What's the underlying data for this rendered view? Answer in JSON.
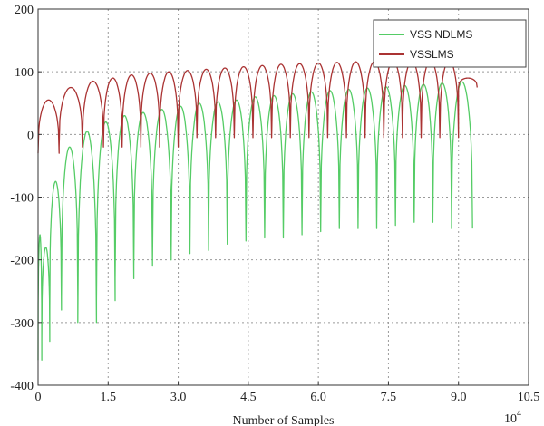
{
  "chart_data": {
    "type": "line",
    "title": "",
    "xlabel": "Number of Samples",
    "ylabel": "",
    "x_exponent_label": "10",
    "x_exponent_power": "4",
    "xlim": [
      0,
      10.5
    ],
    "ylim": [
      -400,
      200
    ],
    "x_ticks": [
      0,
      1.5,
      3.0,
      4.5,
      6.0,
      7.5,
      9.0,
      10.5
    ],
    "x_tick_labels": [
      "0",
      "1.5",
      "3.0",
      "4.5",
      "6.0",
      "7.5",
      "9.0",
      "10.5"
    ],
    "y_ticks": [
      -400,
      -300,
      -200,
      -100,
      0,
      100,
      200
    ],
    "y_tick_labels": [
      "-400",
      "-300",
      "-200",
      "-100",
      "0",
      "100",
      "200"
    ],
    "grid": true,
    "legend_position": "top-right",
    "series": [
      {
        "name": "VSS NDLMS",
        "color": "#55cc66",
        "lobes": [
          {
            "start": 0.0,
            "end": 0.08,
            "top": -160,
            "floor": -360
          },
          {
            "start": 0.08,
            "end": 0.25,
            "top": -180,
            "floor": -330
          },
          {
            "start": 0.25,
            "end": 0.5,
            "top": -75,
            "floor": -280
          },
          {
            "start": 0.5,
            "end": 0.85,
            "top": -20,
            "floor": -260
          },
          {
            "start": 0.85,
            "end": 1.25,
            "top": 5,
            "floor": -300
          },
          {
            "start": 1.25,
            "end": 1.65,
            "top": 20,
            "floor": -265
          },
          {
            "start": 1.65,
            "end": 2.05,
            "top": 30,
            "floor": -230
          },
          {
            "start": 2.05,
            "end": 2.45,
            "top": 35,
            "floor": -210
          },
          {
            "start": 2.45,
            "end": 2.85,
            "top": 40,
            "floor": -200
          },
          {
            "start": 2.85,
            "end": 3.25,
            "top": 45,
            "floor": -190
          },
          {
            "start": 3.25,
            "end": 3.65,
            "top": 50,
            "floor": -185
          },
          {
            "start": 3.65,
            "end": 4.05,
            "top": 52,
            "floor": -175
          },
          {
            "start": 4.05,
            "end": 4.45,
            "top": 55,
            "floor": -170
          },
          {
            "start": 4.45,
            "end": 4.85,
            "top": 60,
            "floor": -160
          },
          {
            "start": 4.85,
            "end": 5.25,
            "top": 62,
            "floor": -165
          },
          {
            "start": 5.25,
            "end": 5.65,
            "top": 65,
            "floor": -160
          },
          {
            "start": 5.65,
            "end": 6.05,
            "top": 68,
            "floor": -155
          },
          {
            "start": 6.05,
            "end": 6.45,
            "top": 70,
            "floor": -150
          },
          {
            "start": 6.45,
            "end": 6.85,
            "top": 72,
            "floor": -148
          },
          {
            "start": 6.85,
            "end": 7.25,
            "top": 74,
            "floor": -150
          },
          {
            "start": 7.25,
            "end": 7.65,
            "top": 76,
            "floor": -145
          },
          {
            "start": 7.65,
            "end": 8.05,
            "top": 78,
            "floor": -140
          },
          {
            "start": 8.05,
            "end": 8.45,
            "top": 80,
            "floor": -140
          },
          {
            "start": 8.45,
            "end": 8.85,
            "top": 82,
            "floor": -135
          },
          {
            "start": 8.85,
            "end": 9.3,
            "top": 84,
            "floor": -150
          }
        ]
      },
      {
        "name": "VSSLMS",
        "color": "#aa3333",
        "lobes": [
          {
            "start": 0.0,
            "end": 0.45,
            "top": 55,
            "floor": -30
          },
          {
            "start": 0.45,
            "end": 0.95,
            "top": 75,
            "floor": -20
          },
          {
            "start": 0.95,
            "end": 1.4,
            "top": 85,
            "floor": -20
          },
          {
            "start": 1.4,
            "end": 1.8,
            "top": 90,
            "floor": -20
          },
          {
            "start": 1.8,
            "end": 2.2,
            "top": 95,
            "floor": -20
          },
          {
            "start": 2.2,
            "end": 2.6,
            "top": 98,
            "floor": -10
          },
          {
            "start": 2.6,
            "end": 3.0,
            "top": 100,
            "floor": -20
          },
          {
            "start": 3.0,
            "end": 3.4,
            "top": 102,
            "floor": -5
          },
          {
            "start": 3.4,
            "end": 3.8,
            "top": 104,
            "floor": -5
          },
          {
            "start": 3.8,
            "end": 4.2,
            "top": 106,
            "floor": -5
          },
          {
            "start": 4.2,
            "end": 4.6,
            "top": 108,
            "floor": -5
          },
          {
            "start": 4.6,
            "end": 5.0,
            "top": 110,
            "floor": -5
          },
          {
            "start": 5.0,
            "end": 5.4,
            "top": 112,
            "floor": -5
          },
          {
            "start": 5.4,
            "end": 5.8,
            "top": 113,
            "floor": -5
          },
          {
            "start": 5.8,
            "end": 6.2,
            "top": 114,
            "floor": -5
          },
          {
            "start": 6.2,
            "end": 6.6,
            "top": 115,
            "floor": -5
          },
          {
            "start": 6.6,
            "end": 7.0,
            "top": 116,
            "floor": -5
          },
          {
            "start": 7.0,
            "end": 7.4,
            "top": 116,
            "floor": -5
          },
          {
            "start": 7.4,
            "end": 7.8,
            "top": 117,
            "floor": -5
          },
          {
            "start": 7.8,
            "end": 8.2,
            "top": 117,
            "floor": -5
          },
          {
            "start": 8.2,
            "end": 8.6,
            "top": 118,
            "floor": -5
          },
          {
            "start": 8.6,
            "end": 9.0,
            "top": 118,
            "floor": -5
          },
          {
            "start": 9.0,
            "end": 9.4,
            "top": 90,
            "floor": 75
          }
        ]
      }
    ]
  }
}
